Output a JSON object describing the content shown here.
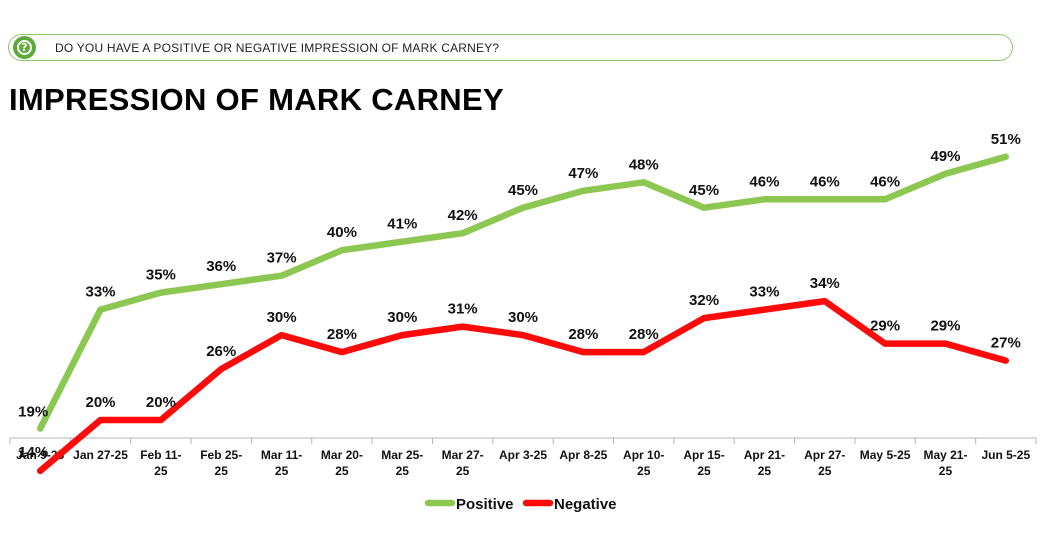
{
  "question": {
    "icon": "question-icon",
    "text": "DO YOU HAVE A POSITIVE OR NEGATIVE IMPRESSION OF MARK CARNEY?"
  },
  "title": "IMPRESSION OF MARK CARNEY",
  "colors": {
    "positive": "#8cc751",
    "negative": "#ff0a0a",
    "accent": "#5fa83a",
    "axis": "#b5b5b5"
  },
  "chart_data": {
    "type": "line",
    "title": "IMPRESSION OF MARK CARNEY",
    "xlabel": "",
    "ylabel": "",
    "ylim": [
      0,
      60
    ],
    "grid": false,
    "legend_position": "bottom-center",
    "categories": [
      [
        "Jan 9-25"
      ],
      [
        "Jan 27-25"
      ],
      [
        "Feb 11-",
        "25"
      ],
      [
        "Feb 25-",
        "25"
      ],
      [
        "Mar 11-",
        "25"
      ],
      [
        "Mar 20-",
        "25"
      ],
      [
        "Mar 25-",
        "25"
      ],
      [
        "Mar 27-",
        "25"
      ],
      [
        "Apr 3-25"
      ],
      [
        "Apr 8-25"
      ],
      [
        "Apr 10-",
        "25"
      ],
      [
        "Apr 15-",
        "25"
      ],
      [
        "Apr 21-",
        "25"
      ],
      [
        "Apr 27-",
        "25"
      ],
      [
        "May 5-25"
      ],
      [
        "May 21-",
        "25"
      ],
      [
        "Jun 5-25"
      ]
    ],
    "series": [
      {
        "name": "Positive",
        "color": "#8cc751",
        "values": [
          19,
          33,
          35,
          36,
          37,
          40,
          41,
          42,
          45,
          47,
          48,
          45,
          46,
          46,
          46,
          49,
          51
        ],
        "labels": [
          "19%",
          "33%",
          "35%",
          "36%",
          "37%",
          "40%",
          "41%",
          "42%",
          "45%",
          "47%",
          "48%",
          "45%",
          "46%",
          "46%",
          "46%",
          "49%",
          "51%"
        ]
      },
      {
        "name": "Negative",
        "color": "#ff0a0a",
        "values": [
          14,
          20,
          20,
          26,
          30,
          28,
          30,
          31,
          30,
          28,
          28,
          32,
          33,
          34,
          29,
          29,
          27
        ],
        "labels": [
          "14%",
          "20%",
          "20%",
          "26%",
          "30%",
          "28%",
          "30%",
          "31%",
          "30%",
          "28%",
          "28%",
          "32%",
          "33%",
          "34%",
          "29%",
          "29%",
          "27%"
        ]
      }
    ]
  }
}
